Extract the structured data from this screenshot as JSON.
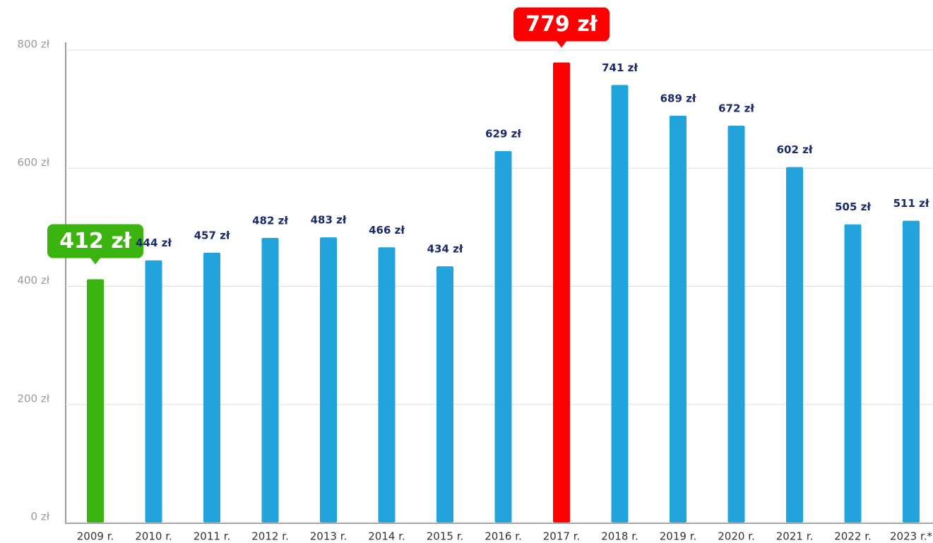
{
  "chart_data": {
    "type": "bar",
    "categories": [
      "2009 r.",
      "2010 r.",
      "2011 r.",
      "2012 r.",
      "2013 r.",
      "2014 r.",
      "2015 r.",
      "2016 r.",
      "2017 r.",
      "2018 r.",
      "2019 r.",
      "2020 r.",
      "2021 r.",
      "2022 r.",
      "2023 r.*"
    ],
    "values": [
      412,
      444,
      457,
      482,
      483,
      466,
      434,
      629,
      779,
      741,
      689,
      672,
      602,
      505,
      511
    ],
    "value_labels": [
      "412 zł",
      "444 zł",
      "457 zł",
      "482 zł",
      "483 zł",
      "466 zł",
      "434 zł",
      "629 zł",
      "779 zł",
      "741 zł",
      "689 zł",
      "672 zł",
      "602 zł",
      "505 zł",
      "511 zł"
    ],
    "color": "#22a3dc",
    "colors": [
      "#3cb410",
      "#22a3dc",
      "#22a3dc",
      "#22a3dc",
      "#22a3dc",
      "#22a3dc",
      "#22a3dc",
      "#22a3dc",
      "#ff0000",
      "#22a3dc",
      "#22a3dc",
      "#22a3dc",
      "#22a3dc",
      "#22a3dc",
      "#22a3dc"
    ],
    "ylim": [
      0,
      800
    ],
    "yticks": [
      {
        "value": 0,
        "label": "0 zł"
      },
      {
        "value": 200,
        "label": "200 zł"
      },
      {
        "value": 400,
        "label": "400 zł"
      },
      {
        "value": 600,
        "label": "600 zł"
      },
      {
        "value": 800,
        "label": "800 zł"
      }
    ],
    "grid": true
  }
}
